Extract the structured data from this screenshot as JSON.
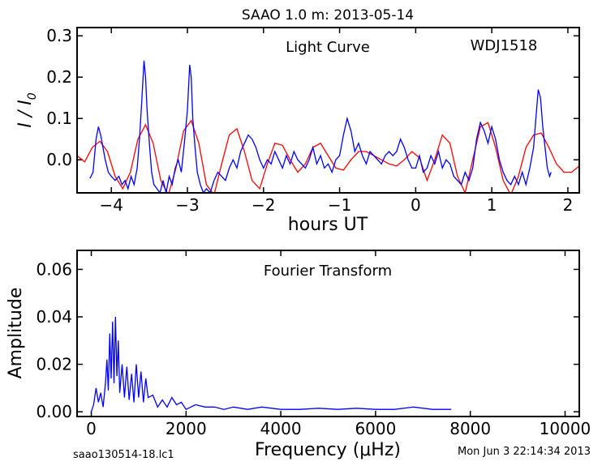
{
  "title": "SAAO 1.0 m:  2013-05-14",
  "footer_left": "saao130514-18.lc1",
  "footer_right": "Mon Jun  3 22:14:34 2013",
  "chart_data": [
    {
      "type": "line",
      "annotation_center": "Light Curve",
      "annotation_right": "WDJ1518",
      "xlabel": "hours UT",
      "ylabel": "I / I0",
      "xlim": [
        -4.45,
        2.15
      ],
      "ylim": [
        -0.08,
        0.32
      ],
      "xticks": [
        -4,
        -3,
        -2,
        -1,
        0,
        1,
        2
      ],
      "yticks": [
        0.0,
        0.1,
        0.2,
        0.3
      ],
      "ytick_labels": [
        "0.0",
        "0.1",
        "0.2",
        "0.3"
      ],
      "grid": false,
      "series": [
        {
          "role": "data",
          "color": "#0000ff",
          "x": [
            -4.28,
            -4.24,
            -4.2,
            -4.17,
            -4.14,
            -4.11,
            -4.08,
            -4.04,
            -4.0,
            -3.95,
            -3.9,
            -3.86,
            -3.82,
            -3.78,
            -3.74,
            -3.7,
            -3.66,
            -3.63,
            -3.6,
            -3.57,
            -3.55,
            -3.53,
            -3.5,
            -3.47,
            -3.44,
            -3.4,
            -3.36,
            -3.32,
            -3.28,
            -3.24,
            -3.2,
            -3.16,
            -3.12,
            -3.08,
            -3.04,
            -3.0,
            -2.97,
            -2.95,
            -2.93,
            -2.9,
            -2.87,
            -2.83,
            -2.79,
            -2.75,
            -2.7,
            -2.65,
            -2.6,
            -2.55,
            -2.5,
            -2.45,
            -2.4,
            -2.35,
            -2.3,
            -2.25,
            -2.2,
            -2.15,
            -2.1,
            -2.05,
            -2.0,
            -1.95,
            -1.9,
            -1.85,
            -1.8,
            -1.75,
            -1.7,
            -1.65,
            -1.6,
            -1.55,
            -1.5,
            -1.45,
            -1.4,
            -1.35,
            -1.3,
            -1.25,
            -1.2,
            -1.15,
            -1.1,
            -1.05,
            -1.0,
            -0.95,
            -0.9,
            -0.85,
            -0.8,
            -0.75,
            -0.7,
            -0.65,
            -0.6,
            -0.55,
            -0.5,
            -0.45,
            -0.4,
            -0.35,
            -0.3,
            -0.25,
            -0.2,
            -0.15,
            -0.1,
            -0.05,
            0.0,
            0.05,
            0.1,
            0.15,
            0.2,
            0.25,
            0.3,
            0.35,
            0.4,
            0.45,
            0.5,
            0.55,
            0.6,
            0.65,
            0.7,
            0.75,
            0.8,
            0.85,
            0.9,
            0.95,
            1.0,
            1.05,
            1.1,
            1.15,
            1.2,
            1.25,
            1.3,
            1.35,
            1.4,
            1.45,
            1.5,
            1.55,
            1.58,
            1.61,
            1.64,
            1.67,
            1.7,
            1.73,
            1.76,
            1.78
          ],
          "y": [
            -0.045,
            -0.03,
            0.05,
            0.08,
            0.06,
            0.03,
            0.0,
            -0.03,
            -0.04,
            -0.05,
            -0.04,
            -0.06,
            -0.05,
            -0.07,
            -0.04,
            -0.06,
            -0.02,
            0.05,
            0.14,
            0.24,
            0.2,
            0.12,
            0.04,
            -0.03,
            -0.06,
            -0.07,
            -0.08,
            -0.05,
            -0.08,
            -0.04,
            -0.06,
            -0.02,
            0.0,
            -0.03,
            0.04,
            0.12,
            0.23,
            0.2,
            0.1,
            0.03,
            -0.03,
            -0.06,
            -0.08,
            -0.07,
            -0.08,
            -0.05,
            -0.03,
            -0.04,
            -0.05,
            -0.02,
            0.0,
            -0.02,
            0.02,
            0.04,
            0.06,
            0.05,
            0.03,
            0.0,
            -0.02,
            0.0,
            -0.01,
            0.02,
            0.0,
            -0.02,
            0.01,
            -0.01,
            0.02,
            0.0,
            -0.01,
            -0.02,
            0.0,
            0.03,
            -0.01,
            0.01,
            -0.02,
            -0.01,
            -0.03,
            0.0,
            0.01,
            0.06,
            0.1,
            0.07,
            0.02,
            0.04,
            0.01,
            -0.01,
            0.02,
            0.01,
            0.0,
            -0.01,
            0.01,
            0.02,
            0.01,
            0.02,
            0.05,
            0.03,
            0.0,
            -0.02,
            -0.02,
            0.01,
            -0.03,
            -0.02,
            0.01,
            -0.01,
            0.02,
            -0.02,
            0.0,
            -0.01,
            -0.04,
            -0.05,
            -0.06,
            -0.03,
            -0.05,
            -0.02,
            0.05,
            0.09,
            0.07,
            0.04,
            0.08,
            0.05,
            0.0,
            -0.03,
            -0.05,
            -0.06,
            -0.04,
            -0.06,
            -0.03,
            -0.06,
            -0.02,
            0.03,
            0.1,
            0.17,
            0.15,
            0.08,
            0.03,
            -0.02,
            -0.04,
            -0.03
          ]
        },
        {
          "role": "model",
          "color": "#ff0000",
          "x": [
            -4.45,
            -4.35,
            -4.25,
            -4.15,
            -4.05,
            -3.95,
            -3.85,
            -3.75,
            -3.65,
            -3.55,
            -3.45,
            -3.35,
            -3.25,
            -3.15,
            -3.05,
            -2.95,
            -2.85,
            -2.75,
            -2.65,
            -2.55,
            -2.45,
            -2.35,
            -2.25,
            -2.15,
            -2.05,
            -1.95,
            -1.85,
            -1.75,
            -1.65,
            -1.55,
            -1.45,
            -1.35,
            -1.25,
            -1.15,
            -1.05,
            -0.95,
            -0.85,
            -0.75,
            -0.65,
            -0.55,
            -0.45,
            -0.35,
            -0.25,
            -0.15,
            -0.05,
            0.05,
            0.15,
            0.25,
            0.35,
            0.45,
            0.55,
            0.65,
            0.75,
            0.85,
            0.95,
            1.05,
            1.15,
            1.25,
            1.35,
            1.45,
            1.55,
            1.65,
            1.75,
            1.85,
            1.95,
            2.05,
            2.15
          ],
          "y": [
            0.01,
            -0.005,
            0.03,
            0.045,
            0.02,
            -0.04,
            -0.07,
            -0.03,
            0.05,
            0.085,
            0.04,
            -0.05,
            -0.085,
            -0.02,
            0.07,
            0.095,
            0.04,
            -0.06,
            -0.085,
            -0.01,
            0.06,
            0.075,
            0.02,
            -0.05,
            -0.07,
            -0.01,
            0.04,
            0.035,
            0.0,
            -0.03,
            -0.01,
            0.03,
            0.04,
            0.01,
            -0.02,
            -0.025,
            0.0,
            0.02,
            0.02,
            0.01,
            0.0,
            -0.01,
            -0.015,
            0.0,
            0.02,
            0.005,
            -0.05,
            0.0,
            0.06,
            0.04,
            -0.04,
            -0.08,
            0.0,
            0.08,
            0.09,
            0.03,
            -0.05,
            -0.085,
            -0.04,
            0.03,
            0.06,
            0.065,
            0.03,
            -0.01,
            -0.03,
            -0.03,
            -0.015
          ]
        }
      ]
    },
    {
      "type": "line",
      "annotation_center": "Fourier Transform",
      "xlabel": "Frequency (μHz)",
      "ylabel": "Amplitude",
      "xlim": [
        -300,
        10300
      ],
      "ylim": [
        -0.002,
        0.068
      ],
      "xticks": [
        0,
        2000,
        4000,
        6000,
        8000,
        10000
      ],
      "yticks": [
        0.0,
        0.02,
        0.04,
        0.06
      ],
      "ytick_labels": [
        "0.00",
        "0.02",
        "0.04",
        "0.06"
      ],
      "grid": false,
      "series": [
        {
          "color": "#0000ff",
          "x": [
            0,
            50,
            100,
            150,
            200,
            250,
            300,
            330,
            360,
            390,
            420,
            450,
            480,
            510,
            540,
            570,
            600,
            650,
            700,
            750,
            800,
            850,
            900,
            950,
            1000,
            1050,
            1100,
            1150,
            1200,
            1300,
            1400,
            1500,
            1600,
            1700,
            1800,
            1900,
            2000,
            2200,
            2400,
            2600,
            2800,
            3000,
            3300,
            3600,
            4000,
            4400,
            4800,
            5200,
            5600,
            6000,
            6400,
            6800,
            7200,
            7600
          ],
          "y": [
            0.0,
            0.003,
            0.01,
            0.004,
            0.008,
            0.002,
            0.012,
            0.022,
            0.009,
            0.033,
            0.014,
            0.038,
            0.012,
            0.04,
            0.015,
            0.03,
            0.008,
            0.02,
            0.006,
            0.019,
            0.005,
            0.016,
            0.004,
            0.02,
            0.006,
            0.017,
            0.004,
            0.014,
            0.006,
            0.007,
            0.002,
            0.005,
            0.002,
            0.006,
            0.003,
            0.004,
            0.001,
            0.003,
            0.002,
            0.002,
            0.001,
            0.002,
            0.001,
            0.002,
            0.001,
            0.001,
            0.0015,
            0.001,
            0.0015,
            0.001,
            0.001,
            0.002,
            0.001,
            0.001
          ]
        }
      ]
    }
  ]
}
